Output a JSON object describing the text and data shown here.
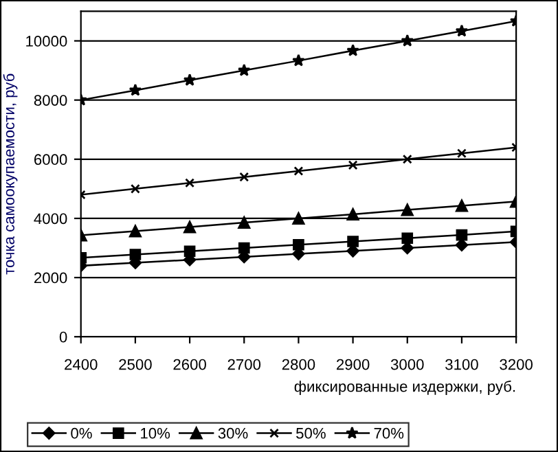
{
  "chart_data": {
    "type": "line",
    "xlabel": "фиксированные издержки, руб.",
    "ylabel": "точка самоокупаемости, руб",
    "x": [
      2400,
      2500,
      2600,
      2700,
      2800,
      2900,
      3000,
      3100,
      3200
    ],
    "series": [
      {
        "name": "0%",
        "color": "#000000",
        "marker": "diamond",
        "values": [
          2400,
          2500,
          2600,
          2700,
          2800,
          2900,
          3000,
          3100,
          3200
        ]
      },
      {
        "name": "10%",
        "color": "#000000",
        "marker": "square",
        "values": [
          2670,
          2780,
          2890,
          3000,
          3110,
          3220,
          3330,
          3440,
          3560
        ]
      },
      {
        "name": "30%",
        "color": "#000000",
        "marker": "triangle",
        "values": [
          3430,
          3570,
          3710,
          3860,
          4000,
          4140,
          4290,
          4430,
          4570
        ]
      },
      {
        "name": "50%",
        "color": "#000000",
        "marker": "cross",
        "values": [
          4800,
          5000,
          5200,
          5400,
          5600,
          5800,
          6000,
          6200,
          6400
        ]
      },
      {
        "name": "70%",
        "color": "#000000",
        "marker": "star",
        "values": [
          8000,
          8330,
          8670,
          9000,
          9330,
          9670,
          10000,
          10330,
          10670
        ]
      }
    ],
    "xlim": [
      2400,
      3200
    ],
    "xticks": [
      2400,
      2500,
      2600,
      2700,
      2800,
      2900,
      3000,
      3100,
      3200
    ],
    "ylim": [
      0,
      11000
    ],
    "yticks": [
      0,
      2000,
      4000,
      6000,
      8000,
      10000
    ],
    "grid": "y",
    "legend": "bottom",
    "line_style": "solid"
  }
}
